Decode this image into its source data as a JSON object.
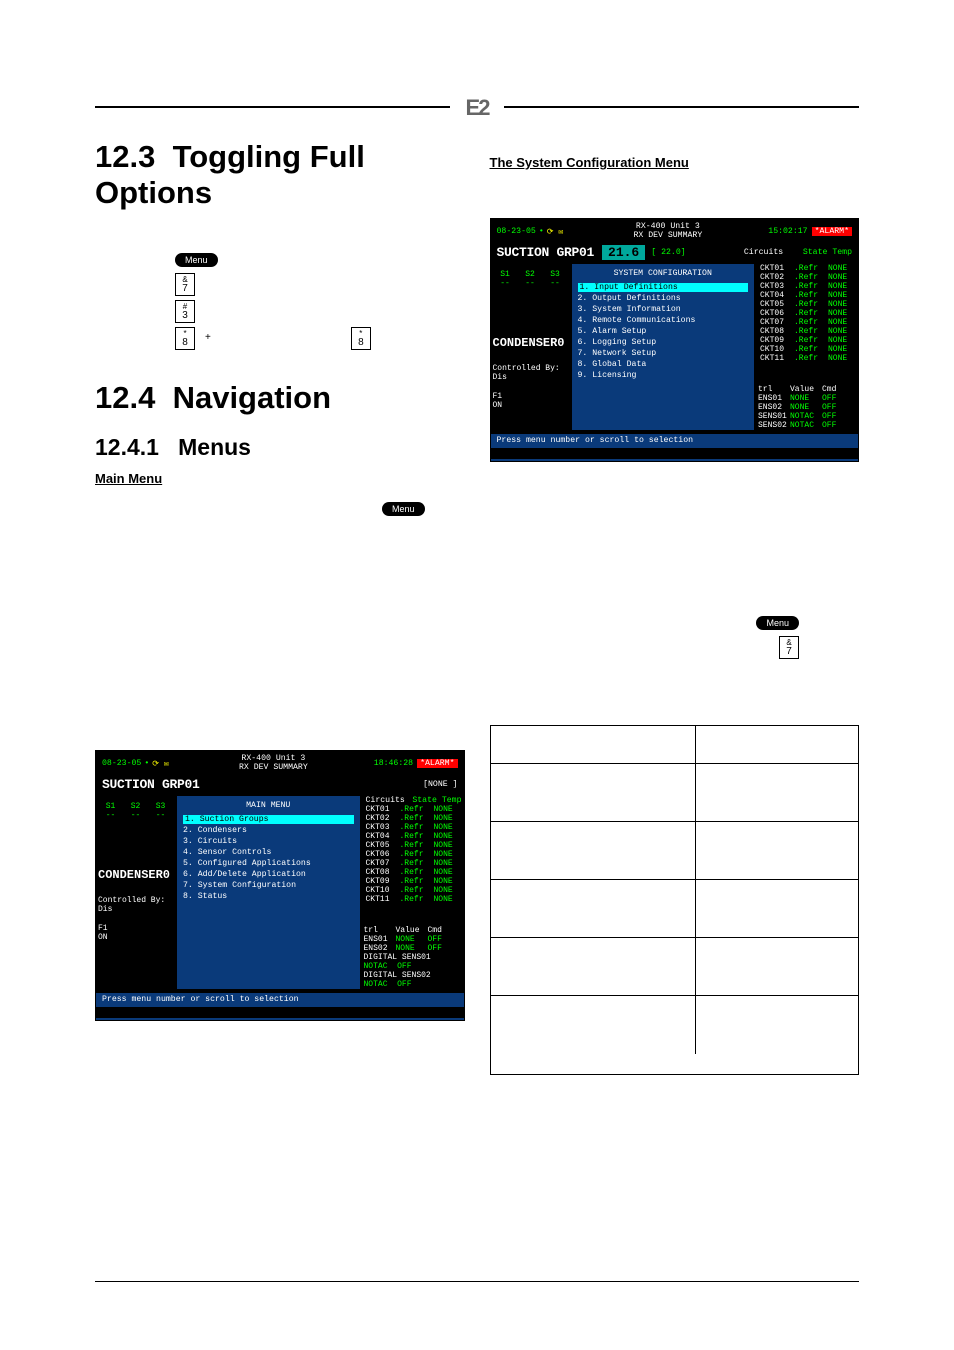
{
  "page": {
    "logo_text": "E2"
  },
  "sections": {
    "s123_num": "12.3",
    "s123_title": "Toggling Full Options",
    "s124_num": "12.4",
    "s124_title": "Navigation",
    "s1241_num": "12.4.1",
    "s1241_title": "Menus",
    "main_menu": "Main Menu",
    "sys_config_menu": "The System Configuration Menu"
  },
  "keys": {
    "menu": "Menu",
    "amp7_top": "&",
    "amp7_bot": "7",
    "hash3_top": "#",
    "hash3_bot": "3",
    "star8_top": "*",
    "star8_bot": "8",
    "plus": "+"
  },
  "term_common": {
    "date": "08-23-05",
    "dot": "•",
    "icons": "⟳ ✉",
    "title_l1": "RX-400 Unit 3",
    "title_l2": "RX DEV SUMMARY",
    "alarm": "*ALARM*",
    "suction": "SUCTION GRP01",
    "condenser": "CONDENSER0",
    "controlled_by": "Controlled By: Dis",
    "f1": "F1",
    "on": "ON",
    "circuits": "Circuits",
    "state": "State",
    "temp": "Temp",
    "foot": "Press menu number or scroll to selection",
    "refr": ".Refr",
    "none": "NONE",
    "notac": "NOTAC",
    "off": "OFF",
    "trl": "trl",
    "value": "Value",
    "cmd": "Cmd",
    "ens01": "ENS01",
    "ens02": "ENS02",
    "sens01": "SENS01",
    "sens02": "SENS02",
    "digital": "DIGITAL"
  },
  "term1": {
    "time": "18:46:28",
    "bigval_none": "[NONE ]",
    "menu_title": "MAIN MENU",
    "items": [
      "1.  Suction Groups",
      "2.  Condensers",
      "3.  Circuits",
      "4.  Sensor Controls",
      "5.  Configured Applications",
      "6.  Add/Delete Application",
      "7.  System Configuration",
      "8.  Status"
    ],
    "s_labels": [
      "S1",
      "S2",
      "S3"
    ]
  },
  "term2": {
    "time": "15:02:17",
    "bigval": "21.6",
    "setpt": "[ 22.0]",
    "menu_title": "SYSTEM CONFIGURATION",
    "items": [
      "1.  Input Definitions",
      "2.  Output Definitions",
      "3.  System Information",
      "4.  Remote Communications",
      "5.  Alarm Setup",
      "6.  Logging Setup",
      "7.  Network Setup",
      "8.  Global Data",
      "9.  Licensing"
    ],
    "s_labels": [
      "S1",
      "S2",
      "S3"
    ]
  },
  "circuits": [
    "CKT01",
    "CKT02",
    "CKT03",
    "CKT04",
    "CKT05",
    "CKT06",
    "CKT07",
    "CKT08",
    "CKT09",
    "CKT10",
    "CKT11"
  ],
  "colors": {
    "term_bg": "#000000",
    "menu_bg": "#0a3a7a",
    "green": "#00ff00",
    "teal": "#00a89c",
    "red": "#ff0000",
    "cyan": "#00ffff",
    "yellow": "#ffff00"
  }
}
